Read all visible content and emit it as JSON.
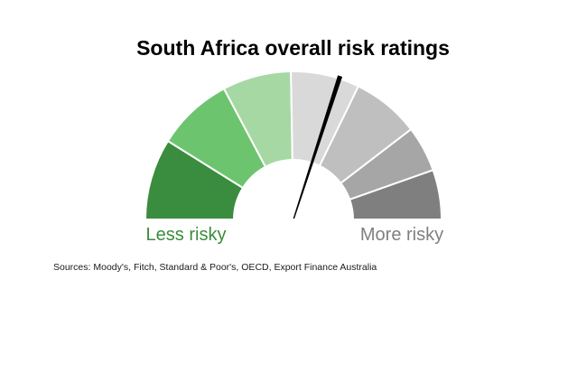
{
  "chart_data": {
    "type": "gauge",
    "title": "South Africa overall risk ratings",
    "left_label": "Less risky",
    "right_label": "More risky",
    "source_note": "Sources: Moody's, Fitch, Standard & Poor's, OECD, Export Finance Australia",
    "scale": {
      "left_end_deg": 180,
      "right_end_deg": 0,
      "left_meaning": "Less risky",
      "right_meaning": "More risky"
    },
    "segments": [
      {
        "name": "green-dark",
        "start_deg": 180,
        "end_deg": 148,
        "color": "#3a8c3e"
      },
      {
        "name": "green-medium",
        "start_deg": 148,
        "end_deg": 118,
        "color": "#6dc46f"
      },
      {
        "name": "green-light",
        "start_deg": 118,
        "end_deg": 91,
        "color": "#a6d8a4"
      },
      {
        "name": "grey-lightest",
        "start_deg": 91,
        "end_deg": 64,
        "color": "#d9d9d9"
      },
      {
        "name": "grey-light",
        "start_deg": 64,
        "end_deg": 37.5,
        "color": "#bfbfbf"
      },
      {
        "name": "grey-medium",
        "start_deg": 37.5,
        "end_deg": 19.5,
        "color": "#a6a6a6"
      },
      {
        "name": "grey-dark",
        "start_deg": 19.5,
        "end_deg": 0,
        "color": "#7f7f7f"
      }
    ],
    "needle": {
      "angle_deg": 72,
      "color": "#000000"
    },
    "colors": {
      "title": "#000000",
      "left_label": "#3a8c3c",
      "right_label": "#808080",
      "segment_separator": "#ffffff",
      "background": "#ffffff",
      "source_text": "#1a1a1a"
    }
  }
}
